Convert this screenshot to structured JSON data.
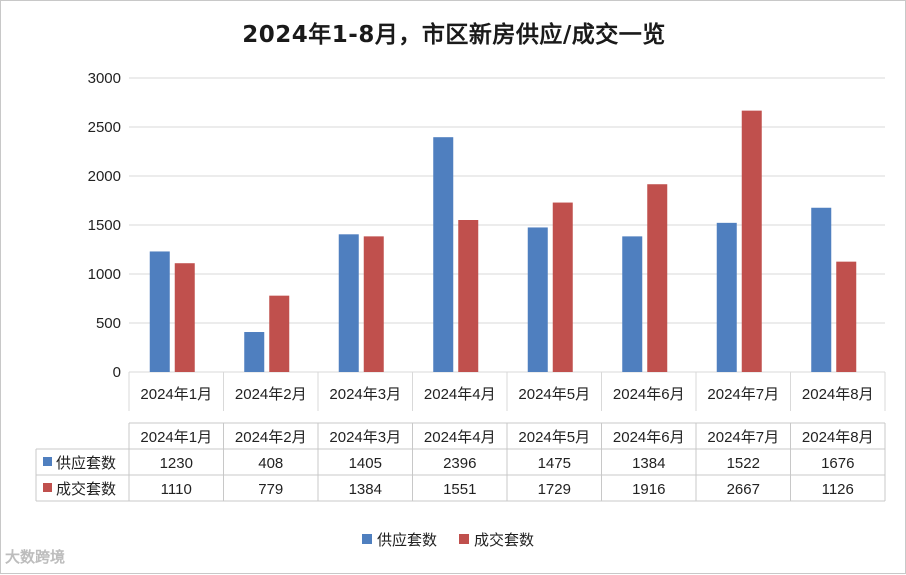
{
  "title": "2024年1-8月，市区新房供应/成交一览",
  "watermark": "大数跨境",
  "colors": {
    "supply": "#4f7fbf",
    "deal": "#c0504d",
    "grid": "#d9d9d9",
    "text": "#222222"
  },
  "chart_data": {
    "type": "bar",
    "title": "2024年1-8月，市区新房供应/成交一览",
    "categories": [
      "2024年1月",
      "2024年2月",
      "2024年3月",
      "2024年4月",
      "2024年5月",
      "2024年6月",
      "2024年7月",
      "2024年8月"
    ],
    "series": [
      {
        "name": "供应套数",
        "values": [
          1230,
          408,
          1405,
          2396,
          1475,
          1384,
          1522,
          1676
        ]
      },
      {
        "name": "成交套数",
        "values": [
          1110,
          779,
          1384,
          1551,
          1729,
          1916,
          2667,
          1126
        ]
      }
    ],
    "ylim": [
      0,
      3000
    ],
    "yticks": [
      0,
      500,
      1000,
      1500,
      2000,
      2500,
      3000
    ],
    "grid": true,
    "legend": "bottom",
    "data_table": true
  }
}
